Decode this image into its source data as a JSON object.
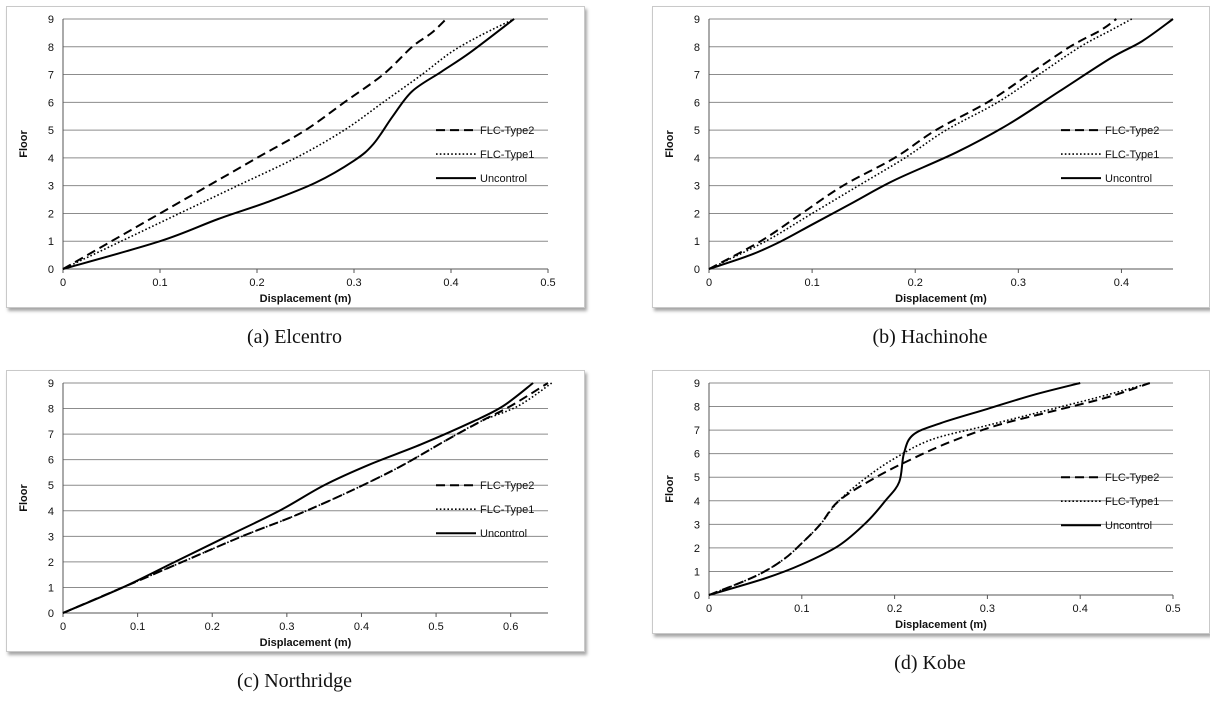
{
  "colors": {
    "line": "#000000",
    "grid": "#8c8c8c"
  },
  "chart_data": [
    {
      "type": "line",
      "caption": "(a) Elcentro",
      "xlabel": "Displacement (m)",
      "ylabel": "Floor",
      "xlim": [
        0,
        0.5
      ],
      "ylim": [
        0,
        9
      ],
      "xticks": [
        "0",
        "0.1",
        "0.2",
        "0.3",
        "0.4",
        "0.5"
      ],
      "yticks": [
        "0",
        "1",
        "2",
        "3",
        "4",
        "5",
        "6",
        "7",
        "8",
        "9"
      ],
      "legend_position": "right",
      "series": [
        {
          "name": "FLC-Type2",
          "style": "dashed",
          "x": [
            0,
            0.05,
            0.1,
            0.15,
            0.2,
            0.25,
            0.29,
            0.33,
            0.36,
            0.38,
            0.395
          ],
          "y": [
            0,
            1,
            2,
            3,
            4,
            5,
            6,
            7,
            8,
            8.5,
            9
          ]
        },
        {
          "name": "FLC-Type1",
          "style": "dotted",
          "x": [
            0,
            0.06,
            0.12,
            0.18,
            0.24,
            0.29,
            0.33,
            0.37,
            0.4,
            0.43,
            0.465
          ],
          "y": [
            0,
            1,
            2,
            3,
            4,
            5,
            6,
            7,
            7.8,
            8.4,
            9
          ]
        },
        {
          "name": "Uncontrol",
          "style": "solid",
          "x": [
            0,
            0.1,
            0.16,
            0.21,
            0.26,
            0.3,
            0.32,
            0.34,
            0.36,
            0.39,
            0.42,
            0.465
          ],
          "y": [
            0,
            1,
            1.8,
            2.4,
            3.1,
            3.9,
            4.5,
            5.5,
            6.4,
            7.1,
            7.8,
            9
          ]
        }
      ]
    },
    {
      "type": "line",
      "caption": "(b) Hachinohe",
      "xlabel": "Displacement (m)",
      "ylabel": "Floor",
      "xlim": [
        0,
        0.45
      ],
      "ylim": [
        0,
        9
      ],
      "xticks": [
        "0",
        "0.1",
        "0.2",
        "0.3",
        "0.4"
      ],
      "yticks": [
        "0",
        "1",
        "2",
        "3",
        "4",
        "5",
        "6",
        "7",
        "8",
        "9"
      ],
      "legend_position": "right",
      "series": [
        {
          "name": "FLC-Type2",
          "style": "dashed",
          "x": [
            0,
            0.05,
            0.09,
            0.13,
            0.18,
            0.22,
            0.27,
            0.31,
            0.35,
            0.38,
            0.395
          ],
          "y": [
            0,
            1,
            2,
            3,
            4,
            5,
            6,
            7,
            8,
            8.6,
            9
          ]
        },
        {
          "name": "FLC-Type1",
          "style": "dotted",
          "x": [
            0,
            0.055,
            0.1,
            0.145,
            0.19,
            0.23,
            0.28,
            0.32,
            0.36,
            0.39,
            0.41
          ],
          "y": [
            0,
            1,
            2,
            3,
            4,
            5,
            6,
            7,
            8,
            8.6,
            9
          ]
        },
        {
          "name": "Uncontrol",
          "style": "solid",
          "x": [
            0,
            0.04,
            0.07,
            0.1,
            0.14,
            0.18,
            0.24,
            0.29,
            0.34,
            0.39,
            0.42,
            0.45
          ],
          "y": [
            0,
            0.5,
            1,
            1.6,
            2.4,
            3.2,
            4.2,
            5.2,
            6.4,
            7.6,
            8.2,
            9
          ]
        }
      ]
    },
    {
      "type": "line",
      "caption": "(c) Northridge",
      "xlabel": "Displacement (m)",
      "ylabel": "Floor",
      "xlim": [
        0,
        0.65
      ],
      "ylim": [
        0,
        9
      ],
      "xticks": [
        "0",
        "0.1",
        "0.2",
        "0.3",
        "0.4",
        "0.5",
        "0.6"
      ],
      "yticks": [
        "0",
        "1",
        "2",
        "3",
        "4",
        "5",
        "6",
        "7",
        "8",
        "9"
      ],
      "legend_position": "right",
      "series": [
        {
          "name": "FLC-Type2",
          "style": "dashed",
          "x": [
            0,
            0.08,
            0.16,
            0.24,
            0.31,
            0.38,
            0.45,
            0.51,
            0.56,
            0.6,
            0.65
          ],
          "y": [
            0,
            1,
            2,
            3,
            3.8,
            4.7,
            5.7,
            6.7,
            7.5,
            8.1,
            9
          ]
        },
        {
          "name": "FLC-Type1",
          "style": "dotted",
          "x": [
            0,
            0.08,
            0.16,
            0.24,
            0.31,
            0.38,
            0.45,
            0.51,
            0.56,
            0.61,
            0.655
          ],
          "y": [
            0,
            1,
            2,
            3,
            3.8,
            4.7,
            5.7,
            6.7,
            7.5,
            8.1,
            9
          ]
        },
        {
          "name": "Uncontrol",
          "style": "solid",
          "x": [
            0,
            0.08,
            0.15,
            0.22,
            0.29,
            0.35,
            0.41,
            0.48,
            0.55,
            0.59,
            0.63
          ],
          "y": [
            0,
            1,
            2,
            3,
            4,
            5,
            5.8,
            6.6,
            7.5,
            8.1,
            9
          ]
        }
      ]
    },
    {
      "type": "line",
      "caption": "(d) Kobe",
      "xlabel": "Displacement (m)",
      "ylabel": "Floor",
      "xlim": [
        0,
        0.5
      ],
      "ylim": [
        0,
        9
      ],
      "xticks": [
        "0",
        "0.1",
        "0.2",
        "0.3",
        "0.4",
        "0.5"
      ],
      "yticks": [
        "0",
        "1",
        "2",
        "3",
        "4",
        "5",
        "6",
        "7",
        "8",
        "9"
      ],
      "legend_position": "right",
      "series": [
        {
          "name": "FLC-Type2",
          "style": "dashed",
          "x": [
            0,
            0.05,
            0.08,
            0.1,
            0.12,
            0.14,
            0.18,
            0.22,
            0.26,
            0.31,
            0.37,
            0.43,
            0.475
          ],
          "y": [
            0,
            0.8,
            1.5,
            2.2,
            3,
            4,
            5,
            5.8,
            6.5,
            7.2,
            7.8,
            8.4,
            9
          ]
        },
        {
          "name": "FLC-Type1",
          "style": "dotted",
          "x": [
            0,
            0.05,
            0.08,
            0.1,
            0.12,
            0.14,
            0.17,
            0.2,
            0.24,
            0.3,
            0.36,
            0.42,
            0.475
          ],
          "y": [
            0,
            0.8,
            1.5,
            2.2,
            3,
            4,
            5,
            5.8,
            6.6,
            7.2,
            7.8,
            8.4,
            9
          ]
        },
        {
          "name": "Uncontrol",
          "style": "solid",
          "x": [
            0,
            0.06,
            0.1,
            0.14,
            0.17,
            0.19,
            0.205,
            0.21,
            0.22,
            0.25,
            0.3,
            0.35,
            0.4
          ],
          "y": [
            0,
            0.7,
            1.3,
            2.1,
            3.1,
            4,
            4.8,
            6,
            6.8,
            7.3,
            7.9,
            8.5,
            9
          ]
        }
      ]
    }
  ]
}
